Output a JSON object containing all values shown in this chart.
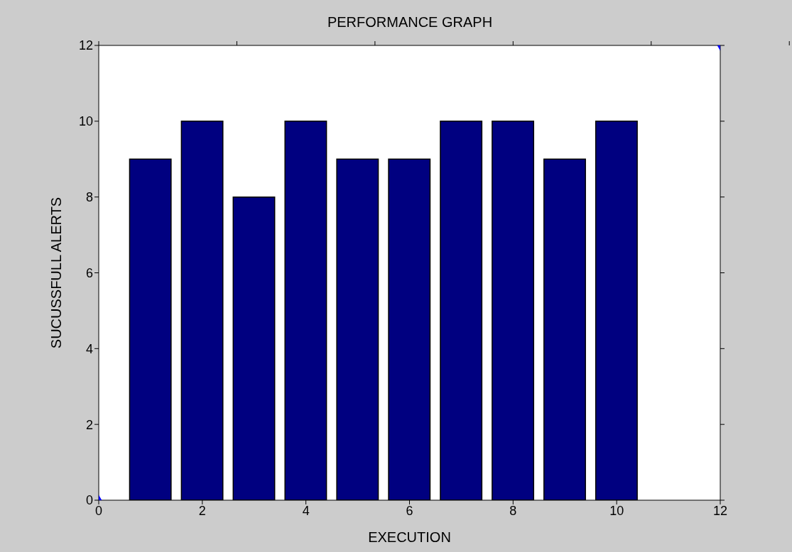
{
  "chart_data": {
    "type": "bar",
    "title": "PERFORMANCE GRAPH",
    "xlabel": "EXECUTION",
    "ylabel": "SUCUSSFULL ALERTS",
    "x": [
      1,
      2,
      3,
      4,
      5,
      6,
      7,
      8,
      9,
      10
    ],
    "series": [
      {
        "color": "#000080",
        "values": [
          9,
          10,
          8,
          10,
          9,
          9,
          10,
          10,
          9,
          10
        ]
      },
      {
        "type": "scatter",
        "color": "#0000ff",
        "x": [
          0,
          12
        ],
        "values": [
          0,
          12
        ],
        "marker": "diamond"
      }
    ],
    "xlim": [
      0,
      12
    ],
    "xticks": [
      0,
      2,
      4,
      6,
      8,
      10,
      12
    ],
    "ylim": [
      0,
      12
    ],
    "yticks": [
      0,
      2,
      4,
      6,
      8,
      10,
      12
    ],
    "grid": false,
    "legend": false
  }
}
